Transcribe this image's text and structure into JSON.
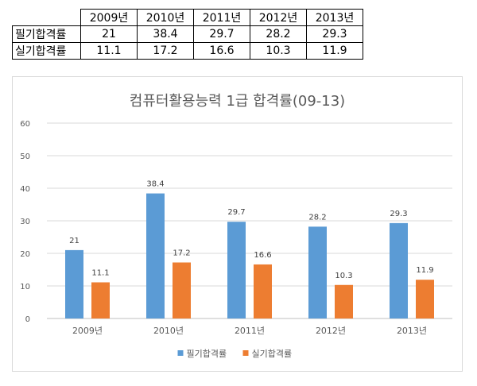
{
  "table": {
    "years": [
      "2009년",
      "2010년",
      "2011년",
      "2012년",
      "2013년"
    ],
    "rows": [
      {
        "label": "필기합격률",
        "values": [
          "21",
          "38.4",
          "29.7",
          "28.2",
          "29.3"
        ]
      },
      {
        "label": "실기합격률",
        "values": [
          "11.1",
          "17.2",
          "16.6",
          "10.3",
          "11.9"
        ]
      }
    ]
  },
  "chart_data": {
    "type": "bar",
    "title": "컴퓨터활용능력 1급 합격률(09-13)",
    "categories": [
      "2009년",
      "2010년",
      "2011년",
      "2012년",
      "2013년"
    ],
    "series": [
      {
        "name": "필기합격률",
        "values": [
          21,
          38.4,
          29.7,
          28.2,
          29.3
        ],
        "color": "#5b9bd5"
      },
      {
        "name": "실기합격률",
        "values": [
          11.1,
          17.2,
          16.6,
          10.3,
          11.9
        ],
        "color": "#ed7d31"
      }
    ],
    "ylim": [
      0,
      60
    ],
    "yticks": [
      0,
      10,
      20,
      30,
      40,
      50,
      60
    ],
    "grid": true,
    "legend": "bottom",
    "data_labels": true,
    "xlabel": "",
    "ylabel": ""
  }
}
